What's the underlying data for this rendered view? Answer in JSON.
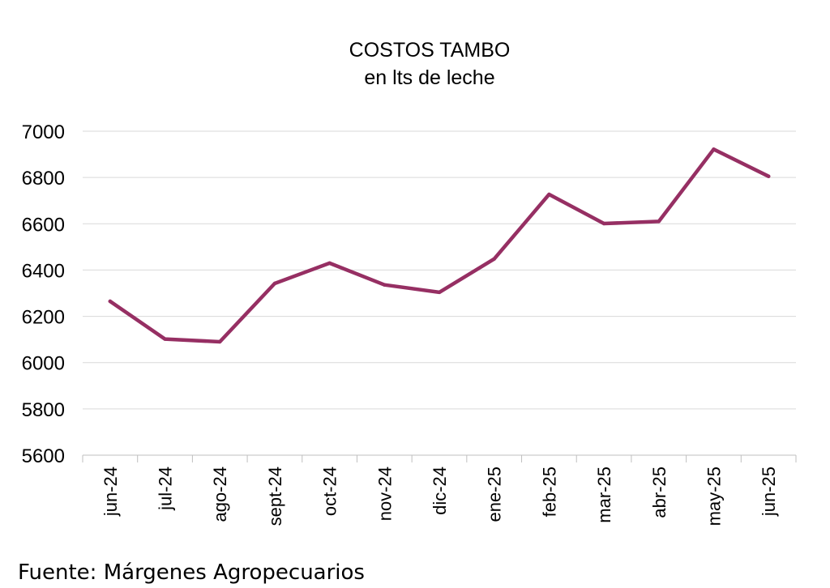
{
  "chart_data": {
    "type": "line",
    "title": "COSTOS TAMBO",
    "subtitle": "en lts de leche",
    "categories": [
      "jun-24",
      "jul-24",
      "ago-24",
      "sept-24",
      "oct-24",
      "nov-24",
      "dic-24",
      "ene-25",
      "feb-25",
      "mar-25",
      "abr-25",
      "may-25",
      "jun-25"
    ],
    "series": [
      {
        "values": [
          6265,
          6102,
          6090,
          6342,
          6430,
          6336,
          6304,
          6448,
          6727,
          6601,
          6610,
          6922,
          6805
        ],
        "color": "#962f63"
      }
    ],
    "ylim": [
      5600,
      7000
    ],
    "yticks": [
      5600,
      5800,
      6000,
      6200,
      6400,
      6600,
      6800,
      7000
    ],
    "grid": true,
    "legend": false
  },
  "source": "Fuente: Márgenes Agropecuarios"
}
